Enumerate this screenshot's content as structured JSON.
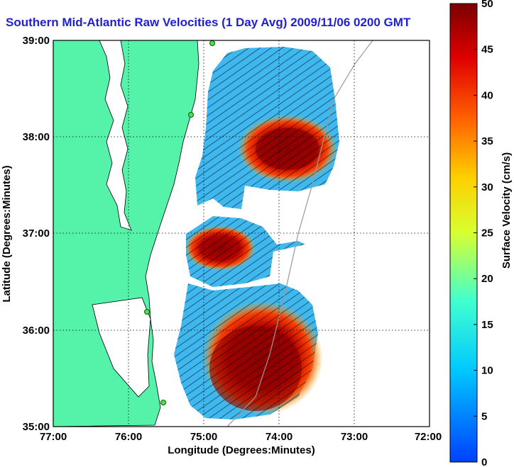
{
  "title": "Southern Mid-Atlantic Raw Velocities (1 Day Avg) 2009/11/06 0200 GMT",
  "map": {
    "xlabel": "Longitude (Degrees:Minutes)",
    "ylabel": "Latitude (Degrees:Minutes)",
    "lon_ticks": [
      "77:00",
      "76:00",
      "75:00",
      "74:00",
      "73:00",
      "72:00"
    ],
    "lat_ticks": [
      "39:00",
      "38:00",
      "37:00",
      "36:00",
      "35:00"
    ],
    "lon_range": [
      -77,
      -72
    ],
    "lat_range": [
      35,
      39
    ],
    "land_color": "#55f2aa",
    "grid": "dotted"
  },
  "colorbar": {
    "label": "Surface Velocity (cm/s)",
    "ticks": [
      "0",
      "5",
      "10",
      "15",
      "20",
      "25",
      "30",
      "35",
      "40",
      "45",
      "50"
    ],
    "min": 0,
    "max": 50,
    "colormap": "jet"
  }
}
